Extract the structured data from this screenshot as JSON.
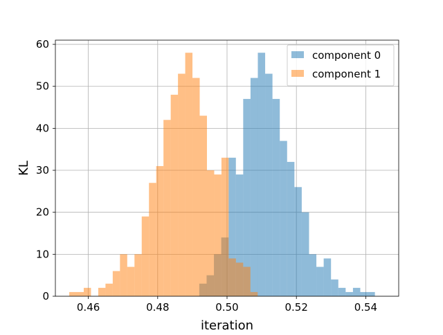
{
  "chart_data": {
    "type": "histogram",
    "xlabel": "iteration",
    "ylabel": "KL",
    "xlim": [
      0.4505,
      0.5495
    ],
    "ylim": [
      0,
      61
    ],
    "xticks": [
      0.46,
      0.48,
      0.5,
      0.52,
      0.54
    ],
    "xtick_labels": [
      "0.46",
      "0.48",
      "0.50",
      "0.52",
      "0.54"
    ],
    "yticks": [
      0,
      10,
      20,
      30,
      40,
      50,
      60
    ],
    "ytick_labels": [
      "0",
      "10",
      "20",
      "30",
      "40",
      "50",
      "60"
    ],
    "grid": true,
    "legend_position": "top-right",
    "series": [
      {
        "name": "component 0",
        "color": "#1f77b4",
        "alpha": 0.5,
        "bin_start": 0.492,
        "bin_width": 0.00211,
        "counts": [
          3,
          5,
          10,
          14,
          33,
          29,
          47,
          52,
          58,
          53,
          47,
          37,
          32,
          26,
          20,
          10,
          7,
          9,
          4,
          2,
          1,
          2,
          1,
          1
        ]
      },
      {
        "name": "component 1",
        "color": "#ff7f0e",
        "alpha": 0.5,
        "bin_start": 0.4545,
        "bin_width": 0.00209,
        "counts": [
          1,
          1,
          2,
          0,
          2,
          3,
          6,
          10,
          7,
          10,
          19,
          27,
          31,
          42,
          48,
          53,
          58,
          52,
          43,
          30,
          29,
          33,
          9,
          8,
          7,
          1
        ]
      }
    ]
  }
}
